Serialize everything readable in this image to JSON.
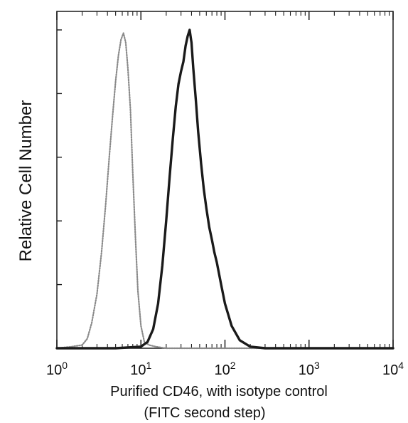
{
  "chart_data": {
    "type": "line",
    "title": "",
    "xlabel_line1": "Purified CD46, with isotype control",
    "xlabel_line2": "(FITC second step)",
    "ylabel": "Relative Cell Number",
    "x_scale": "log",
    "xlim": [
      1,
      10000
    ],
    "ylim": [
      0,
      1
    ],
    "grid": false,
    "legend": "none",
    "x_ticks": [
      {
        "value": 1,
        "base": "10",
        "exp": "0"
      },
      {
        "value": 10,
        "base": "10",
        "exp": "1"
      },
      {
        "value": 100,
        "base": "10",
        "exp": "2"
      },
      {
        "value": 1000,
        "base": "10",
        "exp": "3"
      },
      {
        "value": 10000,
        "base": "10",
        "exp": "4"
      }
    ],
    "y_ticks": [
      0,
      0.2,
      0.4,
      0.6,
      0.8,
      1.0
    ],
    "series": [
      {
        "style": "dotted-gray",
        "color": "#8a8a8a",
        "x": [
          1.0,
          1.5,
          2.0,
          2.3,
          2.6,
          3.0,
          3.4,
          3.8,
          4.2,
          4.6,
          5.0,
          5.4,
          5.8,
          6.2,
          6.6,
          7.0,
          7.5,
          8.0,
          8.6,
          9.2,
          10.0,
          11.0,
          12.5,
          15.0,
          20.0,
          50.0,
          100.0,
          1000.0,
          10000.0
        ],
        "y": [
          0.0,
          0.005,
          0.01,
          0.03,
          0.08,
          0.17,
          0.3,
          0.45,
          0.6,
          0.73,
          0.84,
          0.92,
          0.97,
          0.99,
          0.96,
          0.88,
          0.75,
          0.55,
          0.35,
          0.18,
          0.07,
          0.02,
          0.01,
          0.005,
          0.0,
          0.0,
          0.0,
          0.0,
          0.0
        ]
      },
      {
        "style": "solid-black",
        "color": "#1a1a1a",
        "x": [
          1.0,
          5.0,
          10.0,
          12.0,
          14.0,
          16.0,
          18.0,
          20.0,
          22.0,
          24.0,
          26.0,
          28.0,
          30.0,
          32.0,
          34.0,
          36.0,
          38.0,
          40.0,
          42.0,
          45.0,
          48.0,
          52.0,
          56.0,
          60.0,
          65.0,
          70.0,
          75.0,
          80.0,
          90.0,
          100.0,
          120.0,
          150.0,
          200.0,
          300.0,
          1000.0,
          10000.0
        ],
        "y": [
          0.0,
          0.0,
          0.005,
          0.02,
          0.06,
          0.14,
          0.26,
          0.4,
          0.54,
          0.66,
          0.76,
          0.83,
          0.87,
          0.9,
          0.95,
          0.98,
          1.0,
          0.96,
          0.88,
          0.78,
          0.68,
          0.58,
          0.5,
          0.44,
          0.38,
          0.34,
          0.3,
          0.27,
          0.2,
          0.14,
          0.07,
          0.025,
          0.005,
          0.0,
          0.0,
          0.0
        ]
      }
    ]
  }
}
